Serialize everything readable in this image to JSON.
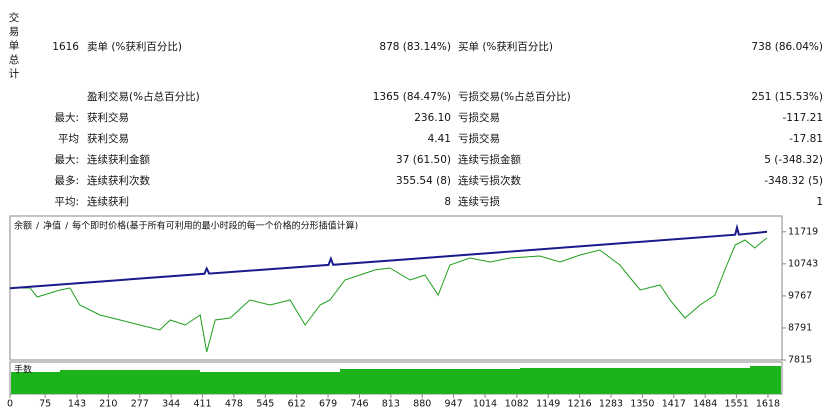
{
  "stats": {
    "side_title": "交易单总计",
    "rows": [
      [
        "1616",
        "卖单 (%获利百分比)",
        "878 (83.14%)",
        "买单 (%获利百分比)",
        "738 (86.04%)"
      ],
      [
        "",
        "盈利交易(%占总百分比)",
        "1365 (84.47%)",
        "亏损交易(%占总百分比)",
        "251 (15.53%)"
      ],
      [
        "最大:",
        "获利交易",
        "236.10",
        "亏损交易",
        "-117.21"
      ],
      [
        "平均",
        "获利交易",
        "4.41",
        "亏损交易",
        "-17.81"
      ],
      [
        "最大:",
        "连续获利金额",
        "37 (61.50)",
        "连续亏损金额",
        "5 (-348.32)"
      ],
      [
        "最多:",
        "连续获利次数",
        "355.54 (8)",
        "连续亏损次数",
        "-348.32 (5)"
      ],
      [
        "平均:",
        "连续获利",
        "8",
        "连续亏损",
        "1"
      ]
    ]
  },
  "chart_data": {
    "type": "line",
    "legend_separator": "/",
    "subtitle": "每个即时价格(基于所有可利用的最小时段的每一个价格的分形插值计算)",
    "volume_label": "手数",
    "xlim": [
      0,
      1648
    ],
    "ylim": [
      7815,
      12200
    ],
    "xticks": [
      0,
      75,
      143,
      210,
      277,
      344,
      411,
      478,
      545,
      612,
      679,
      746,
      813,
      880,
      947,
      1014,
      1082,
      1149,
      1216,
      1283,
      1350,
      1417,
      1484,
      1551,
      1618
    ],
    "yticks": [
      7815,
      8791,
      9767,
      10743,
      11719
    ],
    "series": [
      {
        "name": "余额",
        "color": "#1a1a8c",
        "x": [
          0,
          415,
          420,
          425,
          680,
          685,
          690,
          1548,
          1552,
          1556,
          1616
        ],
        "values": [
          10000,
          10440,
          10600,
          10445,
          10710,
          10900,
          10715,
          11630,
          11850,
          11635,
          11719
        ]
      },
      {
        "name": "净值",
        "color": "#1e9e1e",
        "x": [
          0,
          43,
          58,
          107,
          128,
          149,
          192,
          235,
          277,
          320,
          342,
          374,
          406,
          420,
          438,
          470,
          512,
          555,
          598,
          630,
          662,
          683,
          715,
          747,
          779,
          811,
          854,
          886,
          914,
          939,
          982,
          1025,
          1067,
          1131,
          1174,
          1217,
          1259,
          1302,
          1345,
          1388,
          1409,
          1441,
          1473,
          1505,
          1526,
          1548,
          1569,
          1590,
          1610,
          1616
        ],
        "values": [
          10007,
          10007,
          9733,
          9947,
          10007,
          9490,
          9185,
          9033,
          8881,
          8728,
          9033,
          8881,
          9185,
          8059,
          9033,
          9094,
          9642,
          9490,
          9642,
          8881,
          9490,
          9642,
          10251,
          10403,
          10556,
          10616,
          10251,
          10403,
          9794,
          10708,
          10921,
          10799,
          10921,
          10982,
          10799,
          11012,
          11165,
          10708,
          9947,
          10099,
          9642,
          9094,
          9490,
          9794,
          10556,
          11317,
          11469,
          11225,
          11469,
          11530
        ]
      }
    ]
  }
}
